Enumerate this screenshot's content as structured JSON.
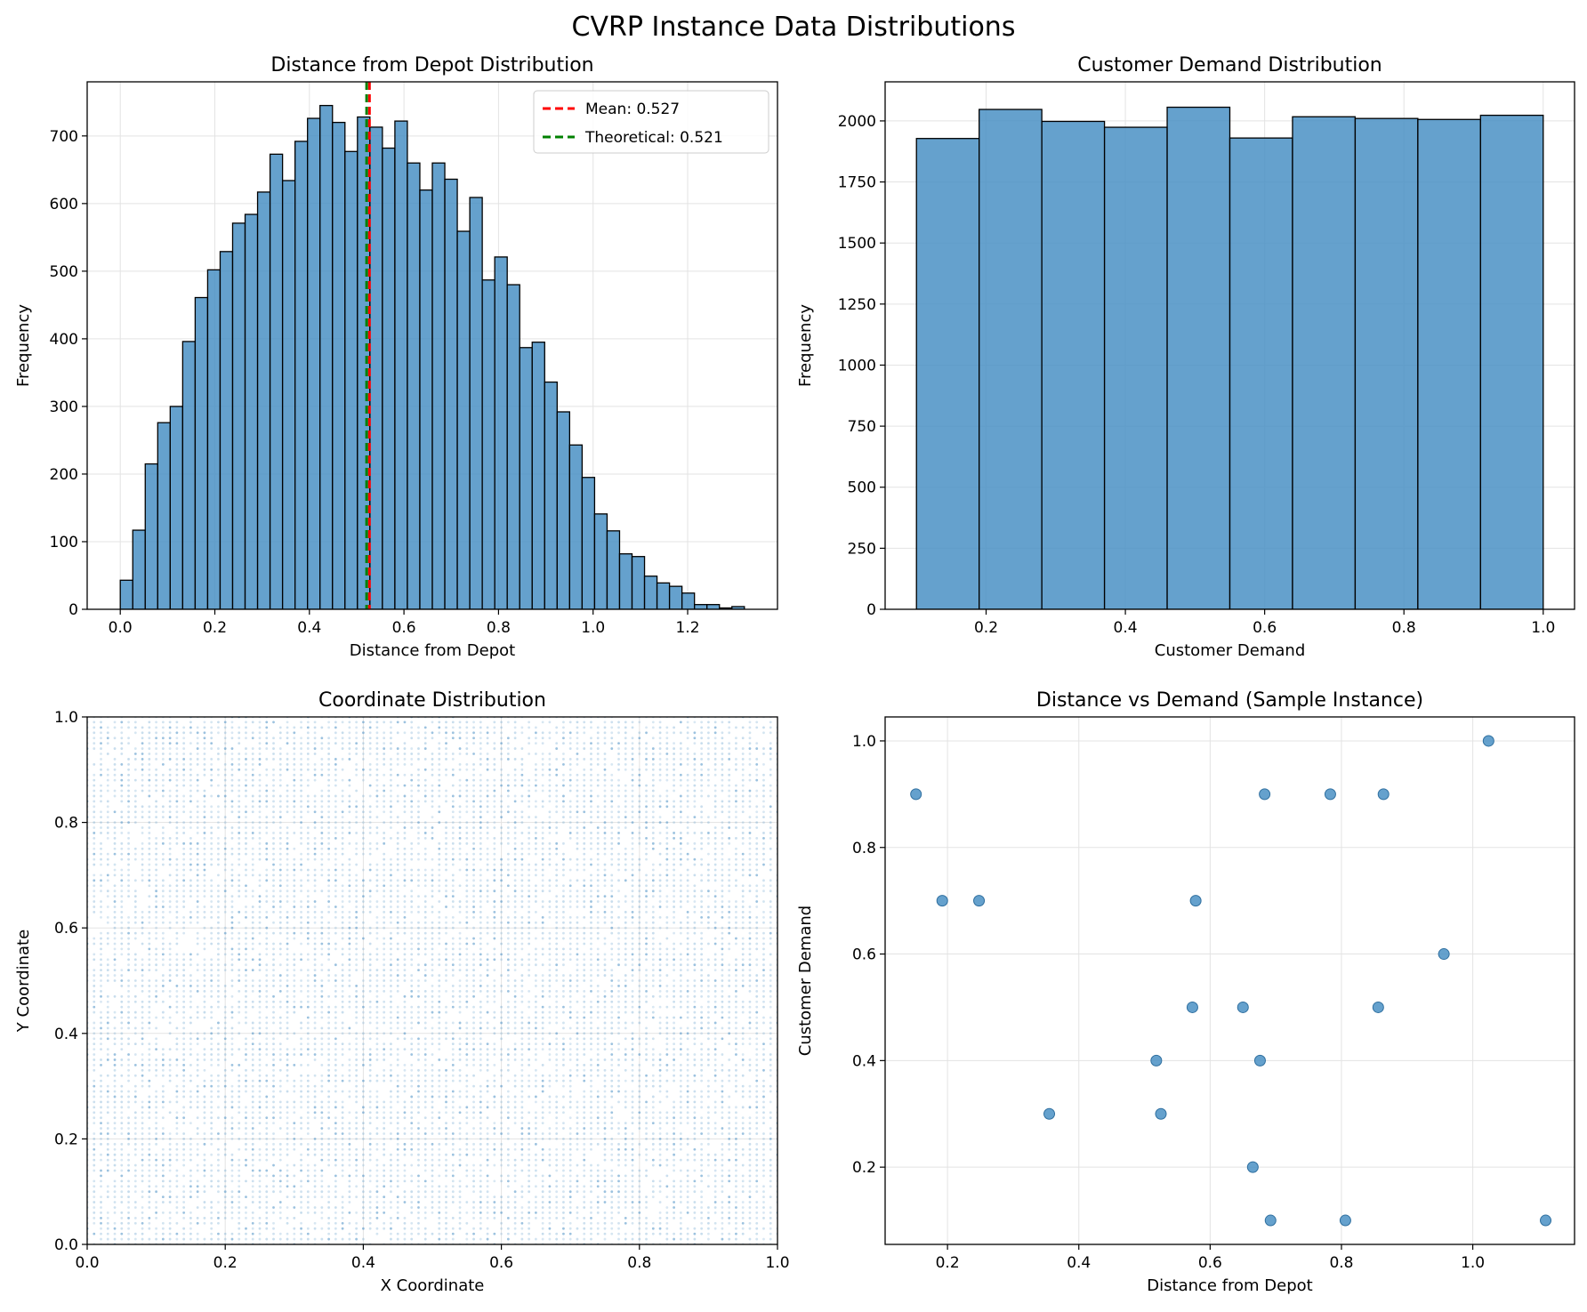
{
  "figure": {
    "title": "CVRP Instance Data Distributions",
    "bar_color": "#4a90c4",
    "grid_color": "#e3e3e3"
  },
  "chart_data": [
    {
      "type": "bar",
      "title": "Distance from Depot Distribution",
      "xlabel": "Distance from Depot",
      "ylabel": "Frequency",
      "xlim": [
        -0.07,
        1.39
      ],
      "ylim": [
        0,
        780
      ],
      "xticks": [
        0.0,
        0.2,
        0.4,
        0.6,
        0.8,
        1.0,
        1.2
      ],
      "xtick_labels": [
        "0.0",
        "0.2",
        "0.4",
        "0.6",
        "0.8",
        "1.0",
        "1.2"
      ],
      "yticks": [
        0,
        100,
        200,
        300,
        400,
        500,
        600,
        700
      ],
      "bin_start": 0.0,
      "bin_width": 0.0264,
      "values": [
        43,
        117,
        215,
        276,
        300,
        396,
        461,
        502,
        529,
        571,
        584,
        617,
        673,
        634,
        692,
        726,
        745,
        720,
        677,
        728,
        713,
        682,
        722,
        660,
        620,
        660,
        636,
        559,
        609,
        487,
        521,
        480,
        387,
        395,
        336,
        292,
        243,
        195,
        141,
        116,
        82,
        78,
        49,
        39,
        34,
        24,
        7,
        7,
        2,
        4
      ],
      "lines": [
        {
          "label": "Mean: 0.527",
          "x": 0.527,
          "color": "#ff0000"
        },
        {
          "label": "Theoretical: 0.521",
          "x": 0.521,
          "color": "#008000"
        }
      ],
      "legend": "upper-right",
      "grid": true
    },
    {
      "type": "bar",
      "title": "Customer Demand Distribution",
      "xlabel": "Customer Demand",
      "ylabel": "Frequency",
      "xlim": [
        0.055,
        1.045
      ],
      "ylim": [
        0,
        2160
      ],
      "xticks": [
        0.2,
        0.4,
        0.6,
        0.8,
        1.0
      ],
      "xtick_labels": [
        "0.2",
        "0.4",
        "0.6",
        "0.8",
        "1.0"
      ],
      "yticks": [
        0,
        250,
        500,
        750,
        1000,
        1250,
        1500,
        1750,
        2000
      ],
      "bin_start": 0.1,
      "bin_width": 0.09,
      "values": [
        1928,
        2047,
        1998,
        1974,
        2056,
        1930,
        2017,
        2010,
        2006,
        2023
      ],
      "grid": true
    },
    {
      "type": "scatter",
      "title": "Coordinate Distribution",
      "xlabel": "X Coordinate",
      "ylabel": "Y Coordinate",
      "xlim": [
        0,
        1
      ],
      "ylim": [
        0,
        1
      ],
      "xticks": [
        0.0,
        0.2,
        0.4,
        0.6,
        0.8,
        1.0
      ],
      "xtick_labels": [
        "0.0",
        "0.2",
        "0.4",
        "0.6",
        "0.8",
        "1.0"
      ],
      "yticks": [
        0.0,
        0.2,
        0.4,
        0.6,
        0.8,
        1.0
      ],
      "ytick_labels": [
        "0.0",
        "0.2",
        "0.4",
        "0.6",
        "0.8",
        "1.0"
      ],
      "grid_step": 0.01,
      "point_alpha": 0.3,
      "grid": true
    },
    {
      "type": "scatter",
      "title": "Distance vs Demand (Sample Instance)",
      "xlabel": "Distance from Depot",
      "ylabel": "Customer Demand",
      "xlim": [
        0.105,
        1.155
      ],
      "ylim": [
        0.055,
        1.045
      ],
      "xticks": [
        0.2,
        0.4,
        0.6,
        0.8,
        1.0
      ],
      "xtick_labels": [
        "0.2",
        "0.4",
        "0.6",
        "0.8",
        "1.0"
      ],
      "yticks": [
        0.2,
        0.4,
        0.6,
        0.8,
        1.0
      ],
      "ytick_labels": [
        "0.2",
        "0.4",
        "0.6",
        "0.8",
        "1.0"
      ],
      "points": [
        [
          0.152,
          0.9
        ],
        [
          0.192,
          0.7
        ],
        [
          0.248,
          0.7
        ],
        [
          0.355,
          0.3
        ],
        [
          0.518,
          0.4
        ],
        [
          0.525,
          0.3
        ],
        [
          0.573,
          0.5
        ],
        [
          0.578,
          0.7
        ],
        [
          0.65,
          0.5
        ],
        [
          0.665,
          0.2
        ],
        [
          0.676,
          0.4
        ],
        [
          0.683,
          0.9
        ],
        [
          0.692,
          0.1
        ],
        [
          0.783,
          0.9
        ],
        [
          0.806,
          0.1
        ],
        [
          0.856,
          0.5
        ],
        [
          0.864,
          0.9
        ],
        [
          0.956,
          0.6
        ],
        [
          1.024,
          1.0
        ],
        [
          1.111,
          0.1
        ]
      ],
      "grid": true
    }
  ]
}
